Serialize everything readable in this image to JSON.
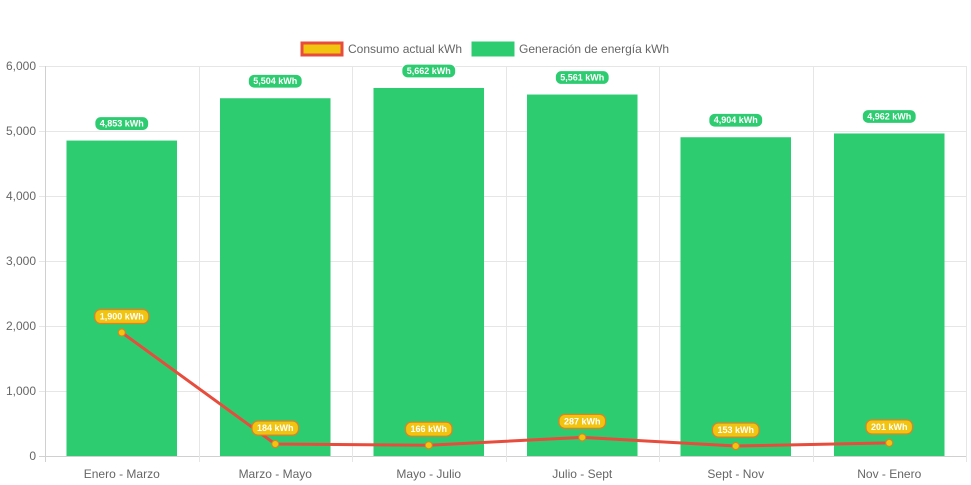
{
  "chart_data": {
    "type": "bar",
    "categories": [
      "Enero - Marzo",
      "Marzo - Mayo",
      "Mayo - Julio",
      "Julio - Sept",
      "Sept - Nov",
      "Nov - Enero"
    ],
    "series": [
      {
        "name": "Generación de energía kWh",
        "type": "bar",
        "color": "#2ecc71",
        "values": [
          4853,
          5504,
          5662,
          5561,
          4904,
          4962
        ],
        "labels": [
          "4,853 kWh",
          "5,504 kWh",
          "5,662 kWh",
          "5,561 kWh",
          "4,904 kWh",
          "4,962 kWh"
        ]
      },
      {
        "name": "Consumo actual kWh",
        "type": "line",
        "color": "#e74c3c",
        "point_color": "#f1c40f",
        "values": [
          1900,
          184,
          166,
          287,
          153,
          201
        ],
        "labels": [
          "1,900 kWh",
          "184 kWh",
          "166 kWh",
          "287 kWh",
          "153 kWh",
          "201 kWh"
        ]
      }
    ],
    "ylim": [
      0,
      6000
    ],
    "yticks": [
      0,
      1000,
      2000,
      3000,
      4000,
      5000,
      6000
    ],
    "ytick_labels": [
      "0",
      "1,000",
      "2,000",
      "3,000",
      "4,000",
      "5,000",
      "6,000"
    ],
    "grid": true,
    "legend_position": "top-center"
  },
  "legend": {
    "items": [
      {
        "label": "Consumo actual kWh",
        "fill": "#f1c40f",
        "stroke": "#e74c3c"
      },
      {
        "label": "Generación de energía kWh",
        "fill": "#2ecc71",
        "stroke": "#2ecc71"
      }
    ]
  }
}
